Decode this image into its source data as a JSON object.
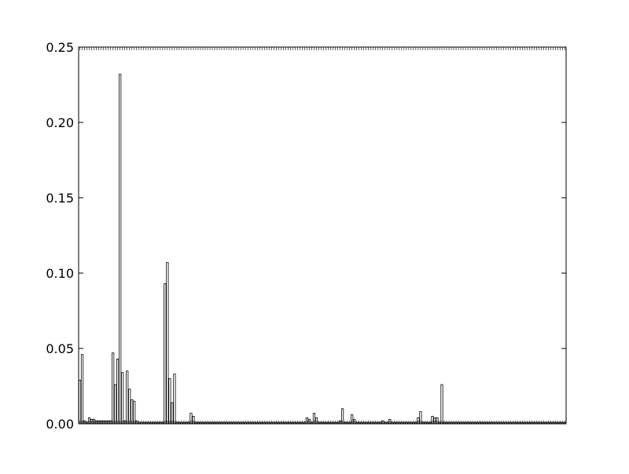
{
  "chart_data": {
    "type": "bar",
    "title": "",
    "xlabel": "",
    "ylabel": "",
    "ylim": [
      0,
      0.25
    ],
    "yticks": [
      "0.00",
      "0.05",
      "0.10",
      "0.15",
      "0.20",
      "0.25"
    ],
    "yticks_values": [
      0.0,
      0.05,
      0.1,
      0.15,
      0.2,
      0.25
    ],
    "grid": false,
    "legend": "none",
    "bar_color": "#000000",
    "bar_fill": "#ffffff",
    "num_categories": 206,
    "highlight_values": {
      "0": 0.029,
      "1": 0.046,
      "2": 0.002,
      "3": 0.001,
      "4": 0.004,
      "5": 0.003,
      "6": 0.003,
      "7": 0.002,
      "8": 0.002,
      "9": 0.002,
      "10": 0.002,
      "11": 0.002,
      "12": 0.002,
      "13": 0.002,
      "14": 0.047,
      "15": 0.026,
      "16": 0.043,
      "17": 0.232,
      "18": 0.034,
      "19": 0.002,
      "20": 0.035,
      "21": 0.023,
      "22": 0.016,
      "23": 0.015,
      "24": 0.002,
      "36": 0.093,
      "37": 0.107,
      "38": 0.03,
      "39": 0.014,
      "40": 0.033,
      "47": 0.007,
      "48": 0.005,
      "96": 0.004,
      "97": 0.003,
      "99": 0.007,
      "100": 0.004,
      "110": 0.002,
      "111": 0.01,
      "115": 0.006,
      "116": 0.003,
      "128": 0.002,
      "131": 0.003,
      "143": 0.004,
      "144": 0.008,
      "149": 0.005,
      "150": 0.004,
      "151": 0.004,
      "153": 0.026
    },
    "default_value": 0.001
  }
}
